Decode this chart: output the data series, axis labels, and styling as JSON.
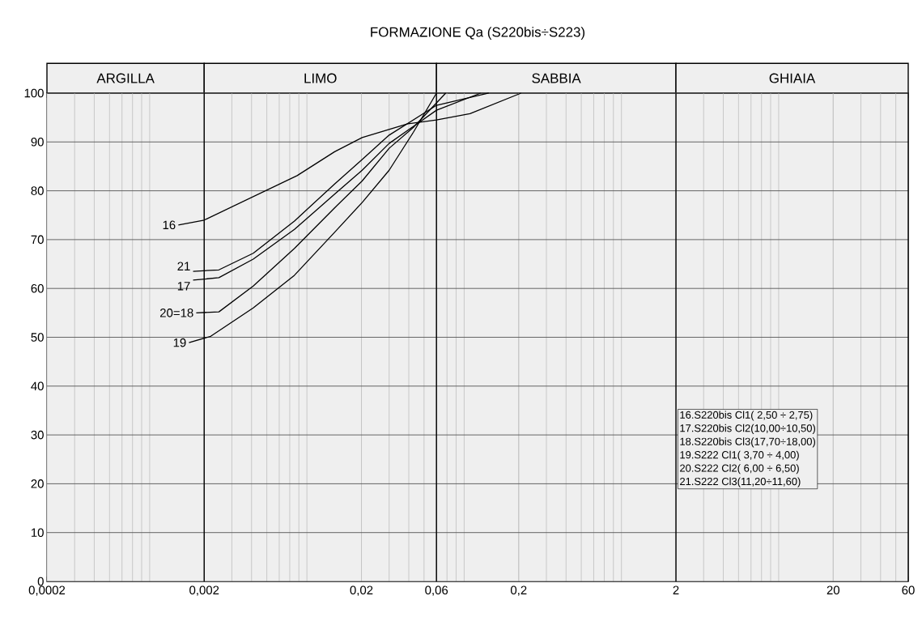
{
  "chart_data": {
    "type": "line",
    "title": "FORMAZIONE Qa (S220bis÷S223)",
    "xlim": [
      0.0002,
      60
    ],
    "ylim": [
      0,
      100
    ],
    "log": "x",
    "xticks": [
      {
        "value": 0.0002,
        "label": "0,0002"
      },
      {
        "value": 0.002,
        "label": "0,002"
      },
      {
        "value": 0.02,
        "label": "0,02"
      },
      {
        "value": 0.06,
        "label": "0,06"
      },
      {
        "value": 0.2,
        "label": "0,2"
      },
      {
        "value": 2,
        "label": "2"
      },
      {
        "value": 20,
        "label": "20"
      },
      {
        "value": 60,
        "label": "60"
      }
    ],
    "yticks": [
      0,
      10,
      20,
      30,
      40,
      50,
      60,
      70,
      80,
      90,
      100
    ],
    "grid": true,
    "marker": "none",
    "line_style": "solid",
    "bands": [
      {
        "axis": "x",
        "from": 0.0002,
        "to": 0.002,
        "label": "ARGILLA",
        "color": "#efefef"
      },
      {
        "axis": "x",
        "from": 0.002,
        "to": 0.06,
        "label": "LIMO",
        "color": "#efefef"
      },
      {
        "axis": "x",
        "from": 0.06,
        "to": 2,
        "label": "SABBIA",
        "color": "#efefef"
      },
      {
        "axis": "x",
        "from": 2,
        "to": 60,
        "label": "GHIAIA",
        "color": "#efefef"
      }
    ],
    "series": [
      {
        "name": "16",
        "color": "#000000",
        "x": [
          0.00137,
          0.002,
          0.0078,
          0.0135,
          0.0202,
          0.0394,
          0.06,
          0.098,
          0.207
        ],
        "values": [
          73,
          74,
          83.1,
          88,
          90.9,
          93.7,
          94.5,
          95.8,
          100
        ]
      },
      {
        "name": "21",
        "color": "#000000",
        "x": [
          0.0017,
          0.00248,
          0.0041,
          0.0075,
          0.0135,
          0.0202,
          0.03,
          0.06,
          0.129
        ],
        "values": [
          63.5,
          63.8,
          67.2,
          73.8,
          81.4,
          86.4,
          91.4,
          97.5,
          100
        ]
      },
      {
        "name": "17",
        "color": "#000000",
        "x": [
          0.0017,
          0.00248,
          0.0041,
          0.0075,
          0.0135,
          0.0202,
          0.03,
          0.06,
          0.1145
        ],
        "values": [
          61.7,
          62.2,
          66,
          72.1,
          79.3,
          84.2,
          89.7,
          96.5,
          100
        ]
      },
      {
        "name": "20=18",
        "color": "#000000",
        "x": [
          0.00178,
          0.00248,
          0.0041,
          0.0075,
          0.0135,
          0.0202,
          0.03,
          0.0428,
          0.0687
        ],
        "values": [
          55,
          55.2,
          60.5,
          68.2,
          76.5,
          82,
          88.7,
          93,
          100
        ]
      },
      {
        "name": "19",
        "color": "#000000",
        "x": [
          0.0016,
          0.0022,
          0.0041,
          0.0075,
          0.0135,
          0.0202,
          0.03,
          0.0428,
          0.06
        ],
        "values": [
          48.9,
          50.2,
          56,
          62.7,
          71.5,
          77.6,
          84.2,
          92,
          100
        ]
      }
    ],
    "annotations": [
      "16.S220bis Cl1( 2,50 ÷ 2,75)",
      "17.S220bis Cl2(10,00÷10,50)",
      "18.S220bis Cl3(17,70÷18,00)",
      "19.S222 Cl1( 3,70 ÷ 4,00)",
      "20.S222 Cl2( 6,00 ÷ 6,50)",
      "21.S222 Cl3(11,20÷11,60)"
    ]
  }
}
